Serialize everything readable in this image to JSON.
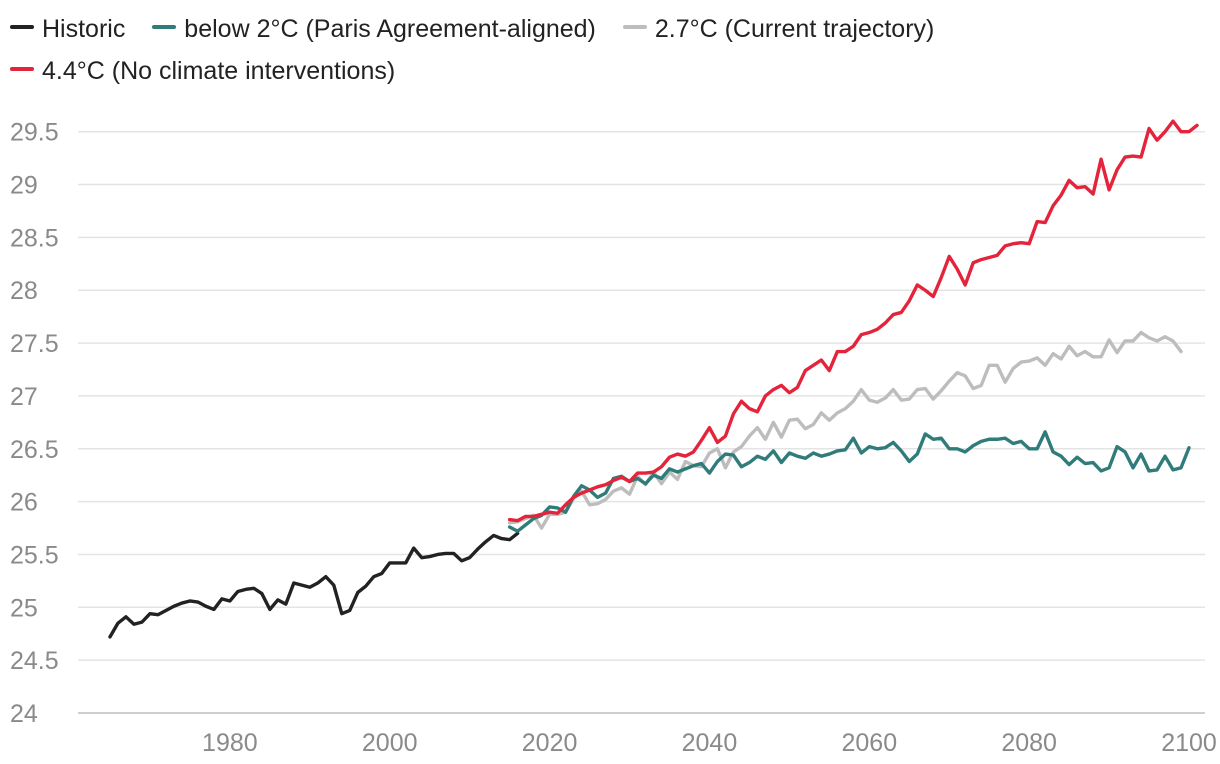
{
  "chart_data": {
    "type": "line",
    "title": "",
    "xlabel": "",
    "ylabel": "",
    "grid": true,
    "legend_position": "top-left",
    "xlim": [
      1961,
      2102
    ],
    "ylim": [
      24,
      29.8
    ],
    "x_ticks": [
      1980,
      2000,
      2020,
      2040,
      2060,
      2080,
      2100
    ],
    "y_ticks": [
      24,
      24.5,
      25,
      25.5,
      26,
      26.5,
      27,
      27.5,
      28,
      28.5,
      29,
      29.5
    ],
    "y_tick_labels": [
      "24",
      "24.5",
      "25",
      "25.5",
      "26",
      "26.5",
      "27",
      "27.5",
      "28",
      "28.5",
      "29",
      "29.5"
    ],
    "series": [
      {
        "name": "Historic",
        "color": "#222222",
        "x_start": 1965,
        "values": [
          24.72,
          24.85,
          24.91,
          24.84,
          24.86,
          24.94,
          24.93,
          24.97,
          25.01,
          25.04,
          25.06,
          25.05,
          25.01,
          24.98,
          25.08,
          25.06,
          25.15,
          25.17,
          25.18,
          25.13,
          24.98,
          25.07,
          25.03,
          25.23,
          25.21,
          25.19,
          25.23,
          25.29,
          25.21,
          24.94,
          24.97,
          25.14,
          25.2,
          25.29,
          25.32,
          25.42,
          25.42,
          25.42,
          25.56,
          25.47,
          25.48,
          25.5,
          25.51,
          25.51,
          25.44,
          25.47,
          25.55,
          25.62,
          25.68,
          25.65,
          25.64,
          25.7
        ]
      },
      {
        "name": "below 2°C (Paris Agreement-aligned)",
        "color": "#2f7c7a",
        "x_start": 2015,
        "values": [
          25.76,
          25.72,
          25.78,
          25.84,
          25.87,
          25.95,
          25.94,
          25.9,
          26.05,
          26.15,
          26.11,
          26.04,
          26.08,
          26.22,
          26.24,
          26.19,
          26.22,
          26.17,
          26.25,
          26.22,
          26.31,
          26.28,
          26.31,
          26.34,
          26.36,
          26.27,
          26.38,
          26.45,
          26.44,
          26.33,
          26.37,
          26.43,
          26.4,
          26.48,
          26.37,
          26.46,
          26.43,
          26.41,
          26.46,
          26.43,
          26.45,
          26.48,
          26.49,
          26.6,
          26.46,
          26.52,
          26.5,
          26.51,
          26.56,
          26.48,
          26.38,
          26.45,
          26.64,
          26.59,
          26.6,
          26.5,
          26.5,
          26.47,
          26.53,
          26.57,
          26.59,
          26.59,
          26.6,
          26.55,
          26.57,
          26.5,
          26.5,
          26.66,
          26.47,
          26.43,
          26.35,
          26.42,
          26.36,
          26.37,
          26.29,
          26.32,
          26.52,
          26.47,
          26.32,
          26.45,
          26.29,
          26.3,
          26.43,
          26.3,
          26.32,
          26.51
        ]
      },
      {
        "name": "2.7°C (Current trajectory)",
        "color": "#bdbdbd",
        "x_start": 2015,
        "values": [
          25.8,
          25.81,
          25.84,
          25.87,
          25.75,
          25.88,
          25.88,
          25.9,
          26.03,
          26.1,
          25.97,
          25.98,
          26.02,
          26.1,
          26.13,
          26.07,
          26.24,
          26.16,
          26.28,
          26.17,
          26.28,
          26.21,
          26.38,
          26.34,
          26.33,
          26.46,
          26.5,
          26.32,
          26.47,
          26.52,
          26.62,
          26.7,
          26.59,
          26.75,
          26.61,
          26.77,
          26.78,
          26.69,
          26.73,
          26.84,
          26.77,
          26.84,
          26.88,
          26.95,
          27.06,
          26.96,
          26.94,
          26.98,
          27.06,
          26.96,
          26.97,
          27.06,
          27.07,
          26.97,
          27.05,
          27.14,
          27.22,
          27.19,
          27.07,
          27.1,
          27.29,
          27.29,
          27.13,
          27.26,
          27.32,
          27.33,
          27.36,
          27.29,
          27.4,
          27.35,
          27.47,
          27.38,
          27.42,
          27.37,
          27.37,
          27.53,
          27.41,
          27.52,
          27.52,
          27.6,
          27.55,
          27.52,
          27.56,
          27.52,
          27.42
        ]
      },
      {
        "name": "4.4°C (No climate interventions)",
        "color": "#e3243b",
        "x_start": 2015,
        "values": [
          25.83,
          25.82,
          25.86,
          25.86,
          25.88,
          25.9,
          25.89,
          25.97,
          26.04,
          26.08,
          26.11,
          26.14,
          26.16,
          26.2,
          26.23,
          26.19,
          26.27,
          26.27,
          26.28,
          26.33,
          26.42,
          26.45,
          26.43,
          26.47,
          26.58,
          26.7,
          26.56,
          26.62,
          26.83,
          26.95,
          26.88,
          26.85,
          27.0,
          27.06,
          27.1,
          27.03,
          27.08,
          27.24,
          27.29,
          27.34,
          27.24,
          27.42,
          27.42,
          27.47,
          27.58,
          27.6,
          27.63,
          27.69,
          27.77,
          27.79,
          27.9,
          28.05,
          28.0,
          27.94,
          28.12,
          28.32,
          28.2,
          28.05,
          28.26,
          28.29,
          28.31,
          28.33,
          28.42,
          28.44,
          28.45,
          28.44,
          28.65,
          28.64,
          28.8,
          28.9,
          29.04,
          28.97,
          28.98,
          28.91,
          29.24,
          28.95,
          29.14,
          29.26,
          29.27,
          29.26,
          29.53,
          29.42,
          29.5,
          29.6,
          29.5,
          29.5,
          29.56
        ]
      }
    ]
  },
  "legend": {
    "items": [
      {
        "label": "Historic",
        "color": "#222222"
      },
      {
        "label": "below 2°C (Paris Agreement-aligned)",
        "color": "#2f7c7a"
      },
      {
        "label": "2.7°C (Current trajectory)",
        "color": "#bdbdbd"
      },
      {
        "label": "4.4°C (No climate interventions)",
        "color": "#e3243b"
      }
    ]
  },
  "colors": {
    "grid": "#e4e4e4",
    "axis": "#cfcfcf",
    "tick_text": "#8a8a8a"
  }
}
